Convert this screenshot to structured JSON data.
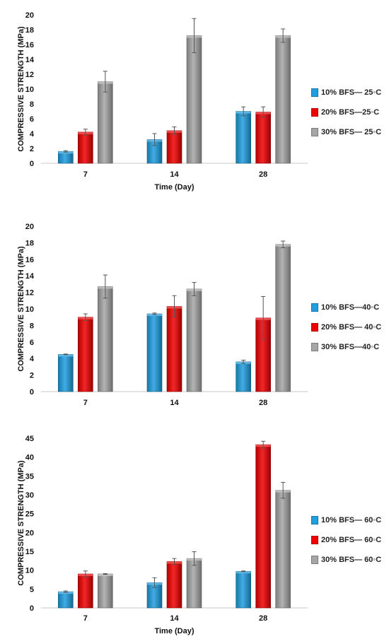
{
  "chart_data": [
    {
      "type": "bar",
      "categories": [
        "7",
        "14",
        "28"
      ],
      "xlabel": "Time (Day)",
      "ylabel": "COMPRESSIVE STRENGTH (MPa)",
      "ylim": [
        0,
        20
      ],
      "yticks": [
        "0",
        "2",
        "4",
        "6",
        "8",
        "10",
        "12",
        "14",
        "16",
        "18",
        "20"
      ],
      "grid": false,
      "legend_position": "right",
      "series": [
        {
          "name": "10% BFS— 25◦C",
          "color": "#1f9ee0",
          "values": [
            1.6,
            3.2,
            7.0
          ],
          "errors": [
            0.1,
            0.8,
            0.6
          ]
        },
        {
          "name": "20% BFS—25◦C",
          "color": "#f00000",
          "values": [
            4.2,
            4.4,
            6.9
          ],
          "errors": [
            0.4,
            0.5,
            0.7
          ]
        },
        {
          "name": "30% BFS— 25◦C",
          "color": "#a6a6a6",
          "values": [
            11.0,
            17.2,
            17.2
          ],
          "errors": [
            1.4,
            2.3,
            0.9
          ]
        }
      ]
    },
    {
      "type": "bar",
      "categories": [
        "7",
        "14",
        "28"
      ],
      "xlabel": "",
      "ylabel": "COMPRESSIVE STRENGTH (MPa)",
      "ylim": [
        0,
        20
      ],
      "yticks": [
        "0",
        "2",
        "4",
        "6",
        "8",
        "10",
        "12",
        "14",
        "16",
        "18",
        "20"
      ],
      "grid": false,
      "legend_position": "right",
      "series": [
        {
          "name": "10% BFS—40◦C",
          "color": "#1f9ee0",
          "values": [
            4.5,
            9.4,
            3.6
          ],
          "errors": [
            0.05,
            0.1,
            0.2
          ]
        },
        {
          "name": "20% BFS— 40◦C",
          "color": "#f00000",
          "values": [
            9.0,
            10.3,
            8.9
          ],
          "errors": [
            0.4,
            1.3,
            2.6
          ]
        },
        {
          "name": "30% BFS—40◦C",
          "color": "#a6a6a6",
          "values": [
            12.7,
            12.4,
            17.8
          ],
          "errors": [
            1.4,
            0.8,
            0.4
          ]
        }
      ]
    },
    {
      "type": "bar",
      "categories": [
        "7",
        "14",
        "28"
      ],
      "xlabel": "Time (Day)",
      "ylabel": "COMPRESSIVE STRENGTH (MPa)",
      "ylim": [
        0,
        45
      ],
      "yticks": [
        "0",
        "5",
        "10",
        "15",
        "20",
        "25",
        "30",
        "35",
        "40",
        "45"
      ],
      "grid": false,
      "legend_position": "right",
      "series": [
        {
          "name": "10% BFS— 60◦C",
          "color": "#1f9ee0",
          "values": [
            4.3,
            6.7,
            9.7
          ],
          "errors": [
            0.2,
            1.3,
            0.1
          ]
        },
        {
          "name": "20% BFS— 60◦C",
          "color": "#f00000",
          "values": [
            9.0,
            12.3,
            43.3
          ],
          "errors": [
            0.8,
            0.8,
            0.9
          ]
        },
        {
          "name": "30% BFS— 60◦C",
          "color": "#a6a6a6",
          "values": [
            9.0,
            13.1,
            31.2
          ],
          "errors": [
            0.1,
            1.8,
            2.1
          ]
        }
      ]
    }
  ]
}
